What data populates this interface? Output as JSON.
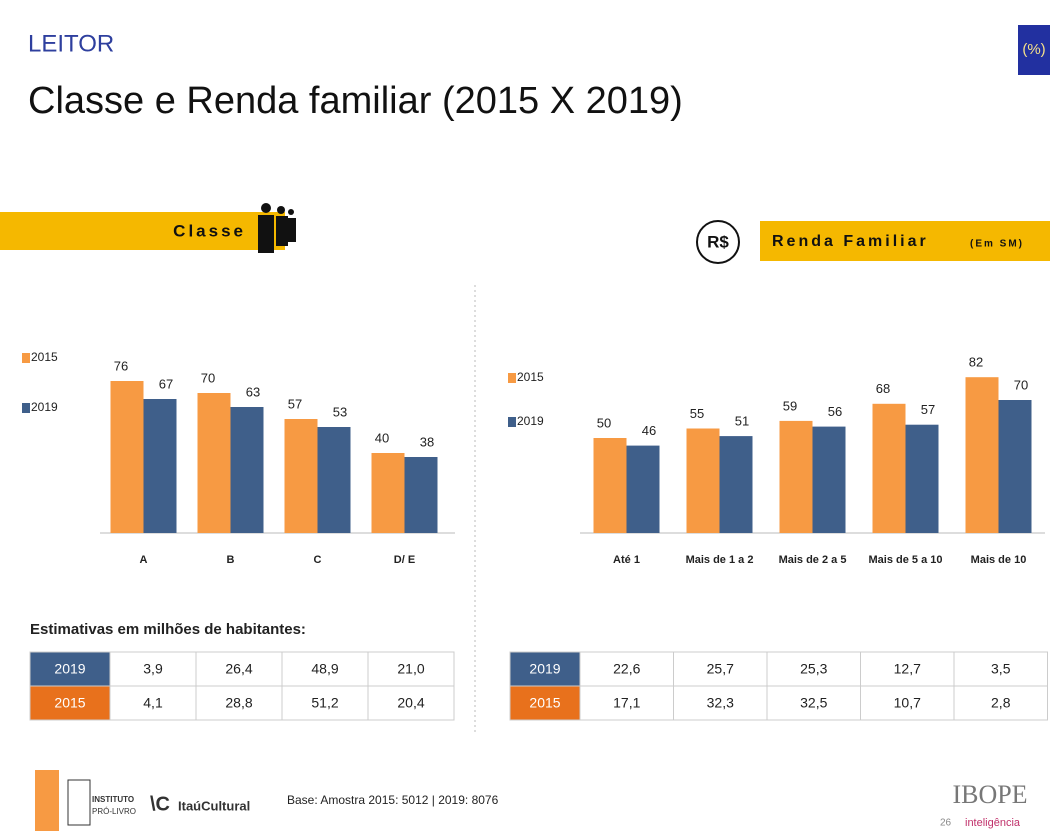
{
  "header": {
    "section": "LEITOR",
    "title": "Classe e Renda familiar (2015 X 2019)",
    "unit": "(%)"
  },
  "chart_data": [
    {
      "type": "bar",
      "title": "Classe",
      "categories": [
        "A",
        "B",
        "C",
        "D/ E"
      ],
      "series": [
        {
          "name": "2015",
          "color": "#f79a43",
          "values": [
            76,
            70,
            57,
            40
          ]
        },
        {
          "name": "2019",
          "color": "#3f5f8a",
          "values": [
            67,
            63,
            53,
            38
          ]
        }
      ]
    },
    {
      "type": "bar",
      "title": "Renda Familiar",
      "subtitle": "(Em SM)",
      "categories": [
        "Até 1",
        "Mais de 1 a 2",
        "Mais de 2 a 5",
        "Mais de 5 a 10",
        "Mais de 10"
      ],
      "series": [
        {
          "name": "2015",
          "color": "#f79a43",
          "values": [
            50,
            55,
            59,
            68,
            82
          ]
        },
        {
          "name": "2019",
          "color": "#3f5f8a",
          "values": [
            46,
            51,
            56,
            57,
            70
          ]
        }
      ]
    }
  ],
  "estimates": {
    "title": "Estimativas em milhões de habitantes:"
  },
  "tables": [
    {
      "rows": [
        [
          "2019",
          "3,9",
          "26,4",
          "48,9",
          "21,0"
        ],
        [
          "2015",
          "4,1",
          "28,8",
          "51,2",
          "20,4"
        ]
      ]
    },
    {
      "rows": [
        [
          "2019",
          "22,6",
          "25,7",
          "25,3",
          "12,7",
          "3,5"
        ],
        [
          "2015",
          "17,1",
          "32,3",
          "32,5",
          "10,7",
          "2,8"
        ]
      ]
    }
  ],
  "footer": {
    "logo1a": "INSTITUTO",
    "logo1b": "PRÓ-LIVRO",
    "logo2": "ItaúCultural",
    "base": "Base: Amostra 2015: 5012 | 2019: 8076",
    "page": "26",
    "brand": "IBOPE",
    "brand_sub": "inteligência"
  }
}
